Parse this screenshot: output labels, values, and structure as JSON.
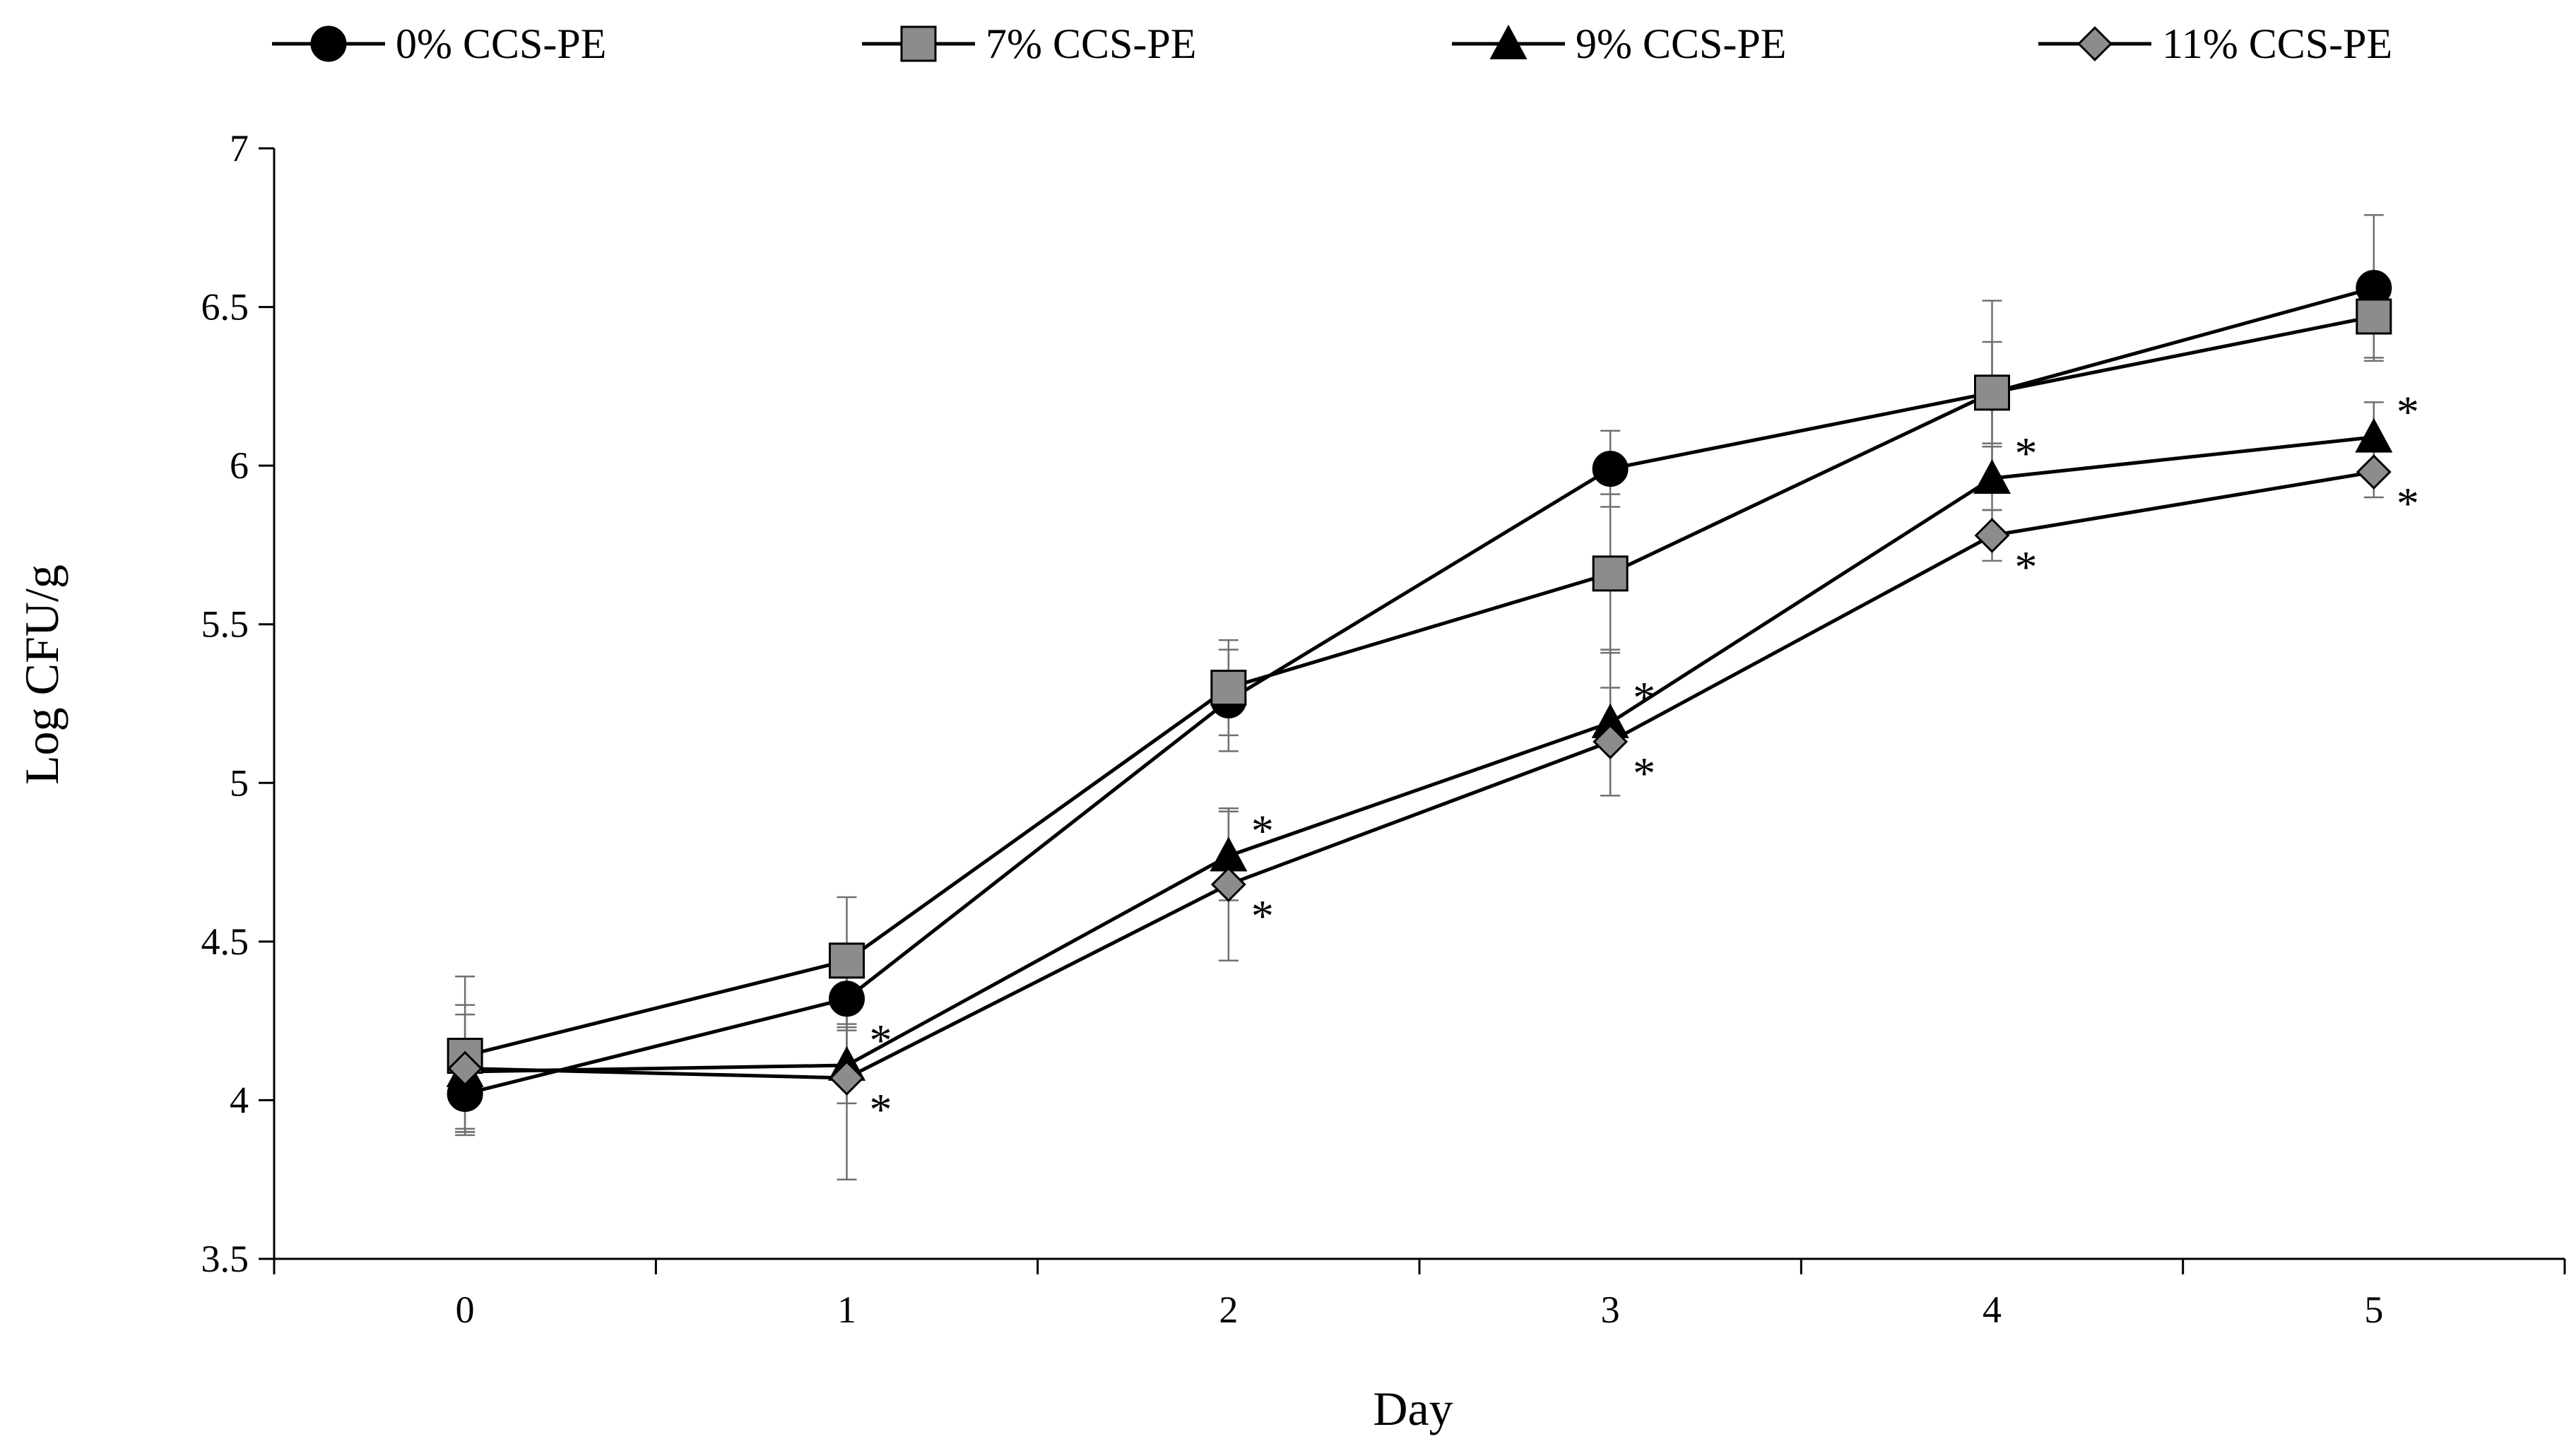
{
  "chart_data": {
    "type": "line",
    "title": "",
    "xlabel": "Day",
    "ylabel": "Log CFU/g",
    "x": [
      0,
      1,
      2,
      3,
      4,
      5
    ],
    "xlim": [
      -0.5,
      5.5
    ],
    "ylim": [
      3.5,
      7
    ],
    "yticks": [
      3.5,
      4,
      4.5,
      5,
      5.5,
      6,
      6.5,
      7
    ],
    "ytick_labels": [
      "3.5",
      "4",
      "4.5",
      "5",
      "5.5",
      "6",
      "6.5",
      "7"
    ],
    "xtick_labels": [
      "0",
      "1",
      "2",
      "3",
      "4",
      "5"
    ],
    "grid": false,
    "legend_position": "top",
    "significance_marker": "*",
    "series": [
      {
        "name": "0% CCS-PE",
        "marker": "circle",
        "fill": "#000000",
        "values": [
          4.02,
          4.32,
          5.26,
          5.99,
          6.23,
          6.56
        ],
        "errors": [
          0.12,
          0.1,
          0.16,
          0.12,
          0.16,
          0.23
        ],
        "significant": [
          false,
          false,
          false,
          false,
          false,
          false
        ]
      },
      {
        "name": "7% CCS-PE",
        "marker": "square",
        "fill": "#8c8c8c",
        "values": [
          4.14,
          4.44,
          5.3,
          5.66,
          6.23,
          6.47
        ],
        "errors": [
          0.25,
          0.2,
          0.15,
          0.25,
          0.29,
          0.13
        ],
        "significant": [
          false,
          false,
          false,
          false,
          false,
          false
        ]
      },
      {
        "name": "9% CCS-PE",
        "marker": "triangle",
        "fill": "#000000",
        "values": [
          4.09,
          4.11,
          4.77,
          5.19,
          5.96,
          6.09
        ],
        "errors": [
          0.18,
          0.12,
          0.14,
          0.23,
          0.1,
          0.11
        ],
        "significant": [
          false,
          true,
          true,
          true,
          true,
          true
        ]
      },
      {
        "name": "11% CCS-PE",
        "marker": "diamond",
        "fill": "#8c8c8c",
        "values": [
          4.1,
          4.07,
          4.68,
          5.13,
          5.78,
          5.98
        ],
        "errors": [
          0.2,
          0.32,
          0.24,
          0.17,
          0.08,
          0.08
        ],
        "significant": [
          false,
          true,
          true,
          true,
          true,
          true
        ]
      }
    ]
  }
}
